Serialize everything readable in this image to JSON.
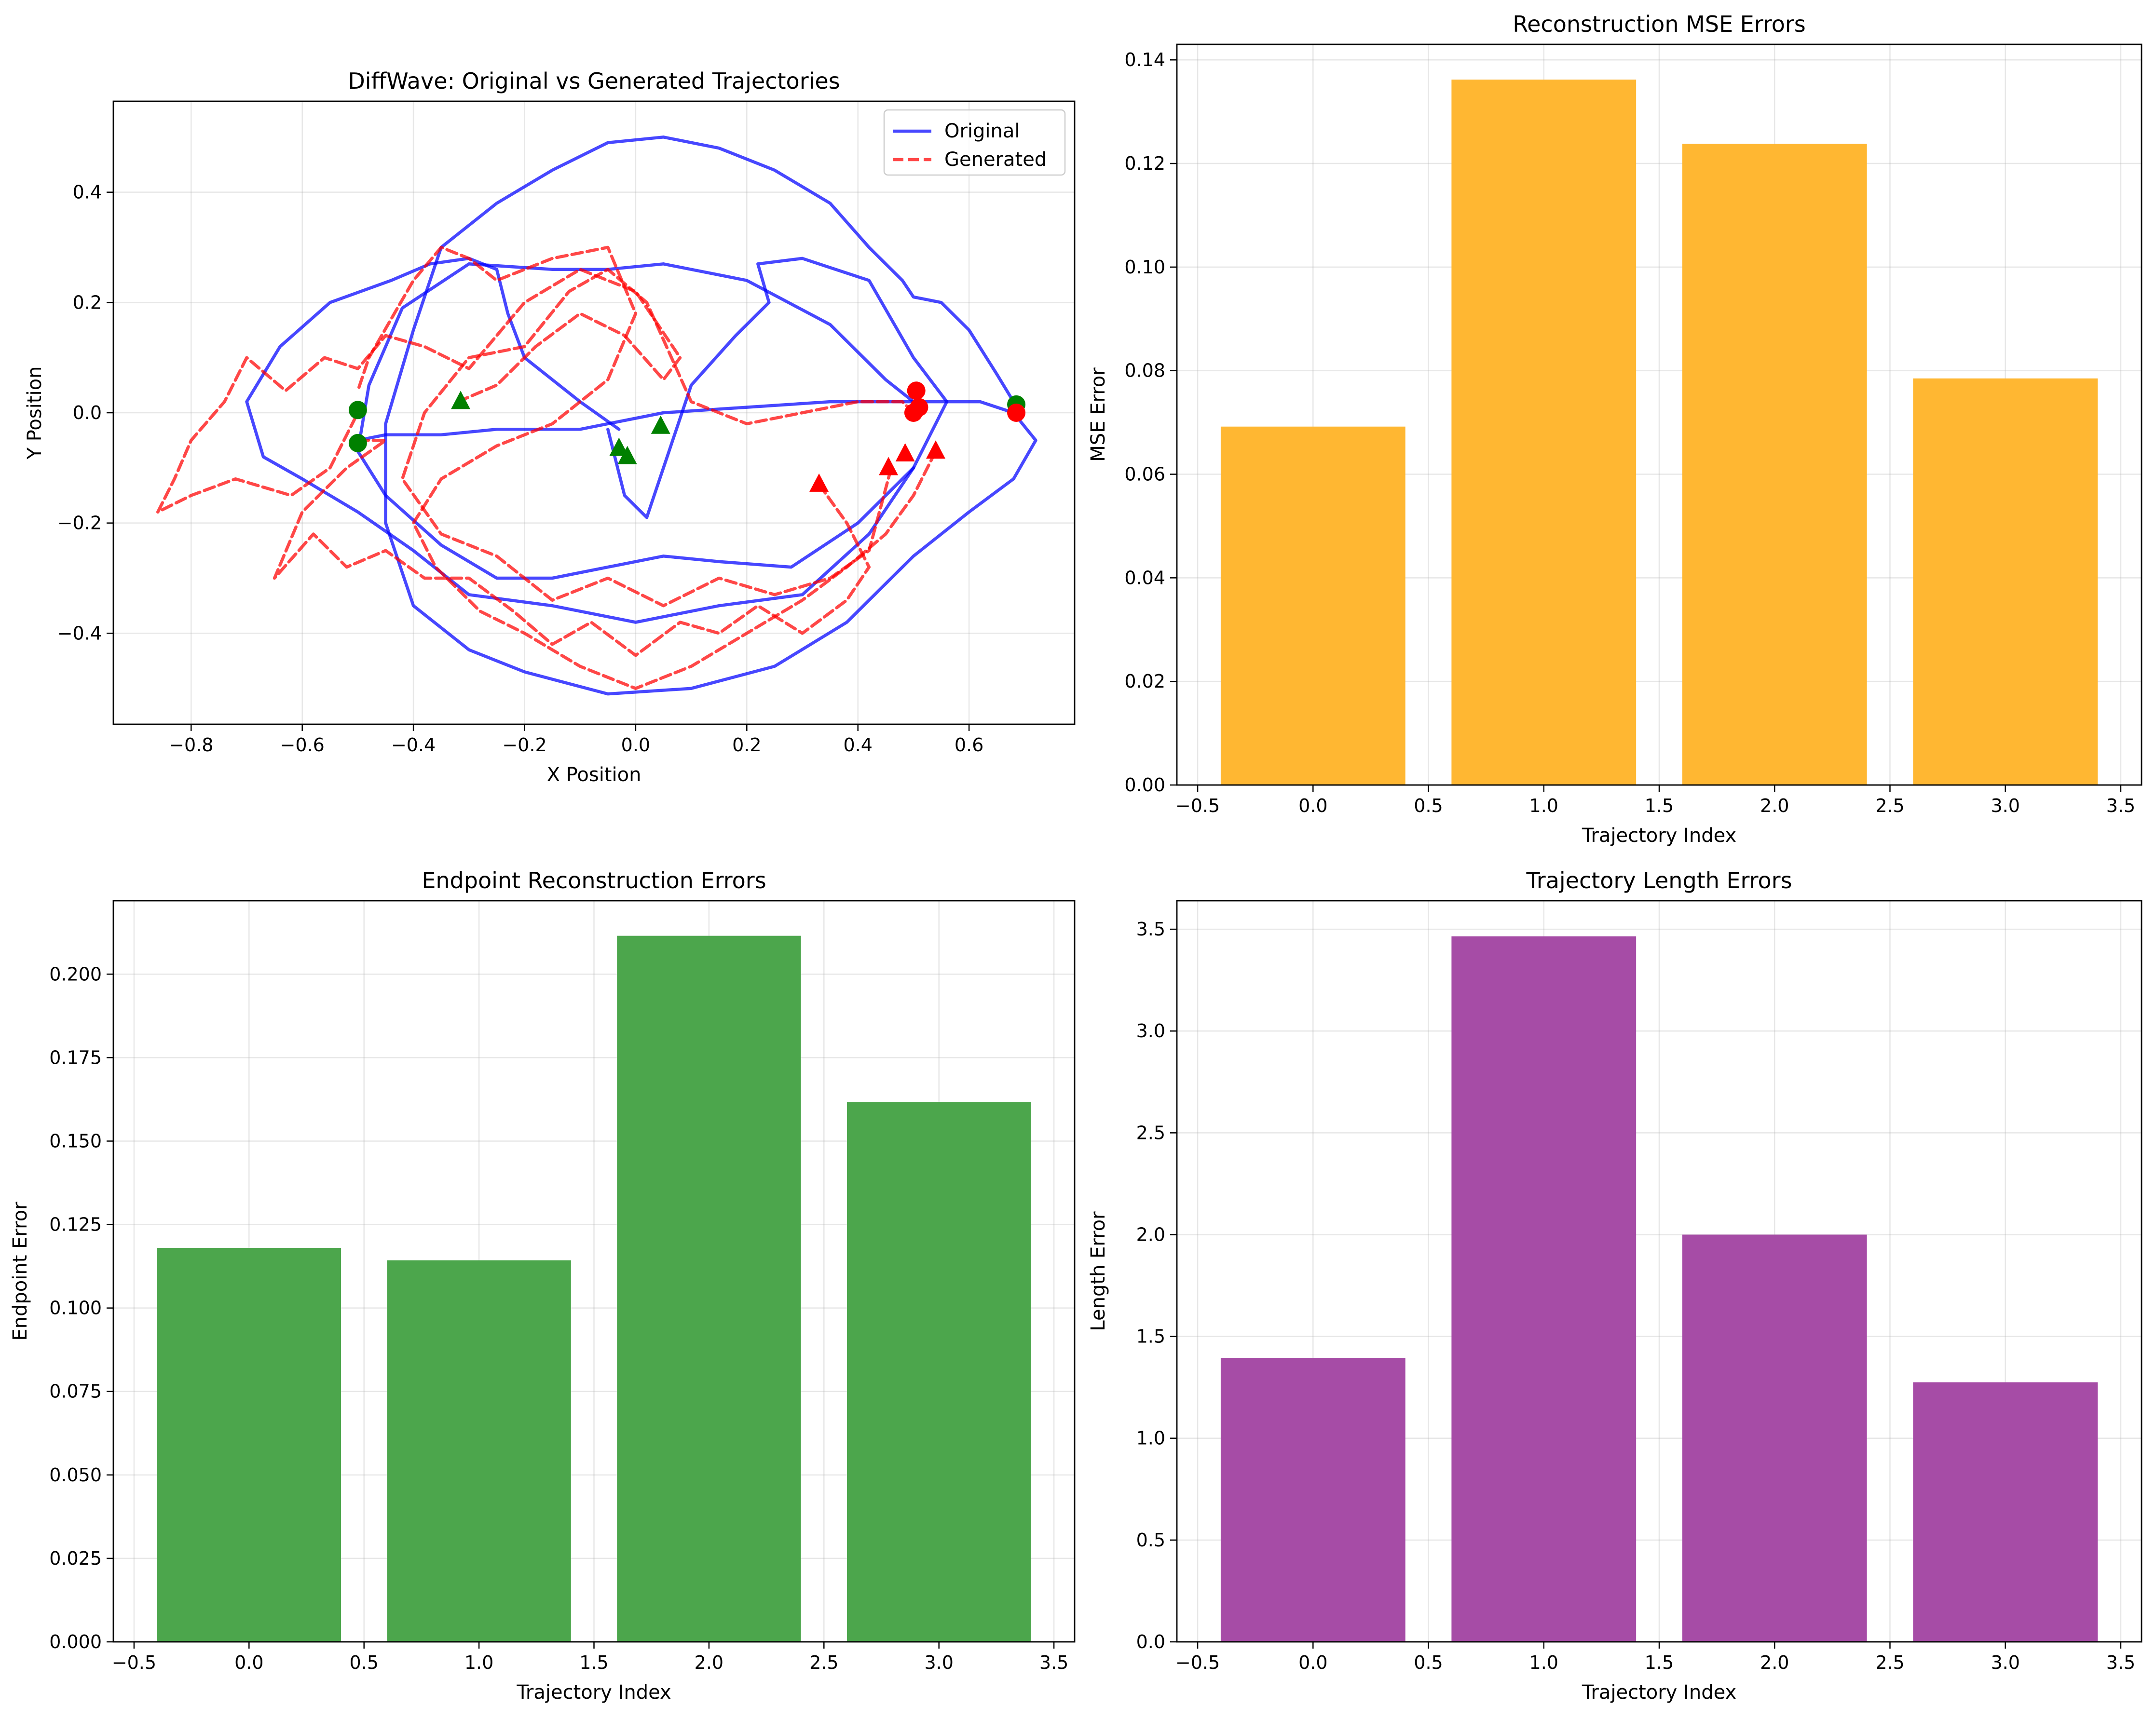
{
  "chart_data": [
    {
      "type": "line",
      "title": "DiffWave: Original vs Generated Trajectories",
      "xlabel": "X Position",
      "ylabel": "Y Position",
      "xlim": [
        -0.94,
        0.79
      ],
      "ylim": [
        -0.565,
        0.565
      ],
      "xticks": [
        -0.8,
        -0.6,
        -0.4,
        -0.2,
        0.0,
        0.2,
        0.4,
        0.6
      ],
      "xtick_labels": [
        "−0.8",
        "−0.6",
        "−0.4",
        "−0.2",
        "0.0",
        "0.2",
        "0.4",
        "0.6"
      ],
      "yticks": [
        -0.4,
        -0.2,
        0.0,
        0.2,
        0.4
      ],
      "ytick_labels": [
        "−0.4",
        "−0.2",
        "0.0",
        "0.2",
        "0.4"
      ],
      "grid": true,
      "legend": {
        "position": "top-right",
        "entries": [
          "Original",
          "Generated"
        ]
      },
      "colors": {
        "original": "#0000ff",
        "generated": "#ff0000",
        "start_marker": "#008000",
        "end_marker": "#ff0000"
      },
      "series": [
        {
          "name": "Original",
          "style": "solid",
          "trajectories": [
            {
              "x": [
                -0.5,
                -0.45,
                -0.35,
                -0.25,
                -0.1,
                0.05,
                0.2,
                0.35,
                0.5,
                0.62,
                0.68
              ],
              "y": [
                -0.05,
                -0.04,
                -0.04,
                -0.03,
                -0.03,
                0.0,
                0.01,
                0.02,
                0.02,
                0.02,
                0.0
              ]
            },
            {
              "x": [
                0.5,
                0.45,
                0.35,
                0.2,
                0.05,
                -0.05,
                -0.15,
                -0.3,
                -0.42,
                -0.48,
                -0.5,
                -0.45,
                -0.35,
                -0.25,
                -0.15,
                -0.05,
                0.05,
                0.15,
                0.28,
                0.4,
                0.5
              ],
              "y": [
                0.02,
                0.06,
                0.16,
                0.24,
                0.27,
                0.26,
                0.26,
                0.27,
                0.19,
                0.05,
                -0.07,
                -0.15,
                -0.24,
                -0.3,
                -0.3,
                -0.28,
                -0.26,
                -0.27,
                -0.28,
                -0.2,
                -0.1
              ]
            },
            {
              "x": [
                -0.05,
                -0.02,
                0.02,
                0.05,
                0.1,
                0.18,
                0.24,
                0.22,
                0.3,
                0.42,
                0.5,
                0.56,
                0.5,
                0.42,
                0.3,
                0.15,
                0.0,
                -0.15,
                -0.3,
                -0.4,
                -0.5,
                -0.6,
                -0.67,
                -0.7,
                -0.64,
                -0.55,
                -0.44,
                -0.37,
                -0.3,
                -0.25,
                -0.23,
                -0.2,
                -0.1,
                -0.03
              ],
              "y": [
                -0.03,
                -0.15,
                -0.19,
                -0.1,
                0.05,
                0.14,
                0.2,
                0.27,
                0.28,
                0.24,
                0.1,
                0.02,
                -0.1,
                -0.22,
                -0.33,
                -0.35,
                -0.38,
                -0.35,
                -0.33,
                -0.25,
                -0.18,
                -0.12,
                -0.08,
                0.02,
                0.12,
                0.2,
                0.24,
                0.27,
                0.28,
                0.26,
                0.18,
                0.1,
                0.02,
                -0.03
              ]
            },
            {
              "x": [
                0.68,
                0.72,
                0.68,
                0.6,
                0.5,
                0.38,
                0.25,
                0.1,
                -0.05,
                -0.2,
                -0.3,
                -0.4,
                -0.45,
                -0.45,
                -0.4,
                -0.35,
                -0.25,
                -0.15,
                -0.05,
                0.05,
                0.15,
                0.25,
                0.35,
                0.42,
                0.48,
                0.5,
                0.55,
                0.6,
                0.65,
                0.68
              ],
              "y": [
                0.0,
                -0.05,
                -0.12,
                -0.18,
                -0.26,
                -0.38,
                -0.46,
                -0.5,
                -0.51,
                -0.47,
                -0.43,
                -0.35,
                -0.2,
                -0.02,
                0.15,
                0.3,
                0.38,
                0.44,
                0.49,
                0.5,
                0.48,
                0.44,
                0.38,
                0.3,
                0.24,
                0.21,
                0.2,
                0.15,
                0.07,
                0.02
              ]
            }
          ]
        },
        {
          "name": "Generated",
          "style": "dashed",
          "trajectories": [
            {
              "x": [
                -0.32,
                -0.25,
                -0.18,
                -0.1,
                -0.02,
                0.05,
                0.08,
                0.0,
                -0.1,
                -0.2,
                -0.3,
                -0.38,
                -0.45,
                -0.5,
                -0.56,
                -0.63,
                -0.7,
                -0.74,
                -0.8,
                -0.83,
                -0.86,
                -0.8,
                -0.72,
                -0.62,
                -0.55,
                -0.5
              ],
              "y": [
                0.02,
                0.05,
                0.12,
                0.18,
                0.14,
                0.06,
                0.1,
                0.22,
                0.26,
                0.2,
                0.08,
                0.12,
                0.14,
                0.08,
                0.1,
                0.04,
                0.1,
                0.02,
                -0.05,
                -0.12,
                -0.18,
                -0.15,
                -0.12,
                -0.15,
                -0.1,
                0.0
              ]
            },
            {
              "x": [
                0.33,
                0.38,
                0.42,
                0.38,
                0.3,
                0.22,
                0.15,
                0.08,
                0.0,
                -0.08,
                -0.15,
                -0.22,
                -0.3,
                -0.38,
                -0.45,
                -0.52,
                -0.58,
                -0.65,
                -0.6,
                -0.52,
                -0.45,
                -0.5
              ],
              "y": [
                -0.13,
                -0.2,
                -0.28,
                -0.34,
                -0.4,
                -0.35,
                -0.4,
                -0.38,
                -0.44,
                -0.38,
                -0.42,
                -0.36,
                -0.3,
                -0.3,
                -0.25,
                -0.28,
                -0.22,
                -0.3,
                -0.18,
                -0.1,
                -0.05,
                -0.05
              ]
            },
            {
              "x": [
                0.46,
                0.42,
                0.35,
                0.25,
                0.15,
                0.05,
                -0.05,
                -0.15,
                -0.25,
                -0.35,
                -0.42,
                -0.38,
                -0.3,
                -0.2,
                -0.12,
                -0.05,
                0.02,
                0.1,
                0.2,
                0.3,
                0.4,
                0.48,
                0.5
              ],
              "y": [
                -0.1,
                -0.25,
                -0.3,
                -0.33,
                -0.3,
                -0.35,
                -0.3,
                -0.34,
                -0.26,
                -0.22,
                -0.12,
                0.0,
                0.1,
                0.12,
                0.22,
                0.26,
                0.2,
                0.02,
                -0.02,
                0.0,
                0.02,
                0.02,
                0.0
              ]
            },
            {
              "x": [
                0.54,
                0.5,
                0.45,
                0.38,
                0.3,
                0.2,
                0.1,
                0.0,
                -0.1,
                -0.2,
                -0.28,
                -0.36,
                -0.4,
                -0.35,
                -0.25,
                -0.15,
                -0.05,
                0.0,
                -0.05,
                -0.15,
                -0.25,
                -0.3,
                -0.35,
                -0.4,
                -0.48,
                -0.5
              ],
              "y": [
                -0.07,
                -0.15,
                -0.22,
                -0.28,
                -0.34,
                -0.4,
                -0.46,
                -0.5,
                -0.46,
                -0.4,
                -0.36,
                -0.28,
                -0.2,
                -0.12,
                -0.06,
                -0.02,
                0.06,
                0.18,
                0.3,
                0.28,
                0.24,
                0.28,
                0.3,
                0.24,
                0.1,
                0.04
              ]
            }
          ]
        }
      ],
      "markers": [
        {
          "shape": "circle",
          "color": "#008000",
          "x": -0.5,
          "y": 0.005
        },
        {
          "shape": "circle",
          "color": "#008000",
          "x": -0.5,
          "y": -0.055
        },
        {
          "shape": "circle",
          "color": "#008000",
          "x": 0.685,
          "y": 0.015
        },
        {
          "shape": "triangle",
          "color": "#008000",
          "x": -0.315,
          "y": 0.02
        },
        {
          "shape": "triangle",
          "color": "#008000",
          "x": -0.03,
          "y": -0.065
        },
        {
          "shape": "triangle",
          "color": "#008000",
          "x": -0.015,
          "y": -0.08
        },
        {
          "shape": "triangle",
          "color": "#008000",
          "x": 0.045,
          "y": -0.025
        },
        {
          "shape": "circle",
          "color": "#ff0000",
          "x": 0.5,
          "y": 0.0
        },
        {
          "shape": "circle",
          "color": "#ff0000",
          "x": 0.505,
          "y": 0.04
        },
        {
          "shape": "circle",
          "color": "#ff0000",
          "x": 0.51,
          "y": 0.01
        },
        {
          "shape": "circle",
          "color": "#ff0000",
          "x": 0.685,
          "y": 0.0
        },
        {
          "shape": "triangle",
          "color": "#ff0000",
          "x": 0.33,
          "y": -0.13
        },
        {
          "shape": "triangle",
          "color": "#ff0000",
          "x": 0.455,
          "y": -0.1
        },
        {
          "shape": "triangle",
          "color": "#ff0000",
          "x": 0.485,
          "y": -0.075
        },
        {
          "shape": "triangle",
          "color": "#ff0000",
          "x": 0.54,
          "y": -0.07
        }
      ]
    },
    {
      "type": "bar",
      "title": "Reconstruction MSE Errors",
      "xlabel": "Trajectory Index",
      "ylabel": "MSE Error",
      "x": [
        0,
        1,
        2,
        3
      ],
      "values": [
        0.0692,
        0.1362,
        0.1238,
        0.0785
      ],
      "xlim": [
        -0.59,
        3.59
      ],
      "ylim": [
        0,
        0.143
      ],
      "xticks": [
        -0.5,
        0.0,
        0.5,
        1.0,
        1.5,
        2.0,
        2.5,
        3.0,
        3.5
      ],
      "xtick_labels": [
        "−0.5",
        "0.0",
        "0.5",
        "1.0",
        "1.5",
        "2.0",
        "2.5",
        "3.0",
        "3.5"
      ],
      "yticks": [
        0.0,
        0.02,
        0.04,
        0.06,
        0.08,
        0.1,
        0.12,
        0.14
      ],
      "ytick_labels": [
        "0.00",
        "0.02",
        "0.04",
        "0.06",
        "0.08",
        "0.10",
        "0.12",
        "0.14"
      ],
      "color": "#ffb732",
      "grid": true
    },
    {
      "type": "bar",
      "title": "Endpoint Reconstruction Errors",
      "xlabel": "Trajectory Index",
      "ylabel": "Endpoint Error",
      "x": [
        0,
        1,
        2,
        3
      ],
      "values": [
        0.118,
        0.1143,
        0.2115,
        0.1617
      ],
      "xlim": [
        -0.59,
        3.59
      ],
      "ylim": [
        0,
        0.222
      ],
      "xticks": [
        -0.5,
        0.0,
        0.5,
        1.0,
        1.5,
        2.0,
        2.5,
        3.0,
        3.5
      ],
      "xtick_labels": [
        "−0.5",
        "0.0",
        "0.5",
        "1.0",
        "1.5",
        "2.0",
        "2.5",
        "3.0",
        "3.5"
      ],
      "yticks": [
        0.0,
        0.025,
        0.05,
        0.075,
        0.1,
        0.125,
        0.15,
        0.175,
        0.2
      ],
      "ytick_labels": [
        "0.000",
        "0.025",
        "0.050",
        "0.075",
        "0.100",
        "0.125",
        "0.150",
        "0.175",
        "0.200"
      ],
      "color": "#4ca64c",
      "grid": true
    },
    {
      "type": "bar",
      "title": "Trajectory Length Errors",
      "xlabel": "Trajectory Index",
      "ylabel": "Length Error",
      "x": [
        0,
        1,
        2,
        3
      ],
      "values": [
        1.395,
        3.465,
        2.0,
        1.275
      ],
      "xlim": [
        -0.59,
        3.59
      ],
      "ylim": [
        0,
        3.64
      ],
      "xticks": [
        -0.5,
        0.0,
        0.5,
        1.0,
        1.5,
        2.0,
        2.5,
        3.0,
        3.5
      ],
      "xtick_labels": [
        "−0.5",
        "0.0",
        "0.5",
        "1.0",
        "1.5",
        "2.0",
        "2.5",
        "3.0",
        "3.5"
      ],
      "yticks": [
        0.0,
        0.5,
        1.0,
        1.5,
        2.0,
        2.5,
        3.0,
        3.5
      ],
      "ytick_labels": [
        "0.0",
        "0.5",
        "1.0",
        "1.5",
        "2.0",
        "2.5",
        "3.0",
        "3.5"
      ],
      "color": "#a64ca6",
      "grid": true
    }
  ]
}
